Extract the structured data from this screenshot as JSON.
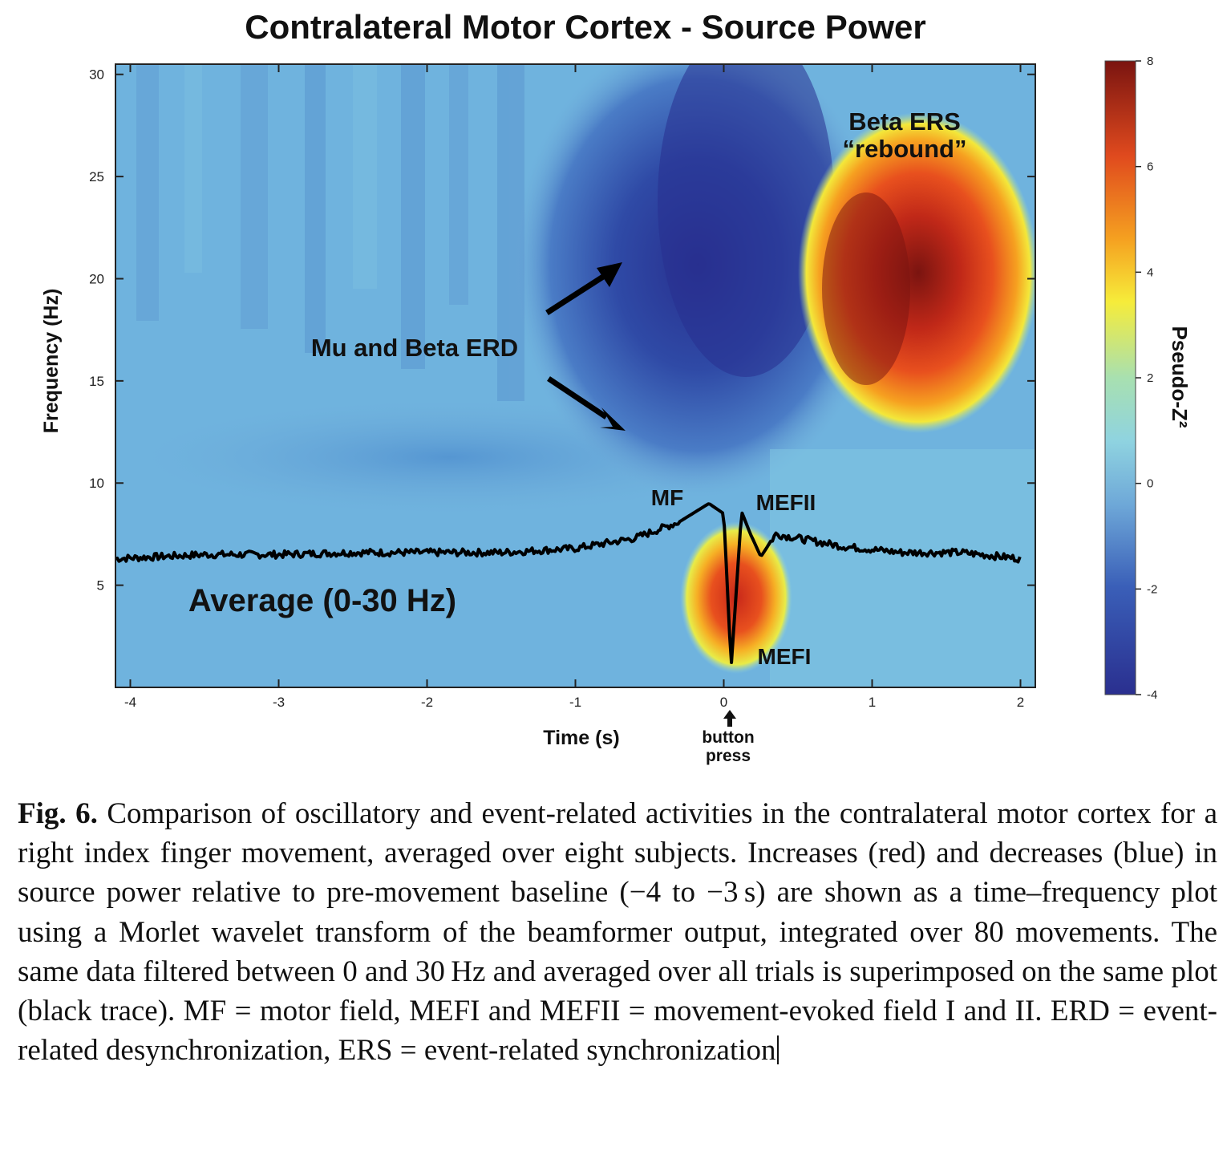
{
  "figure": {
    "title": "Contralateral Motor Cortex - Source Power",
    "colorbar_label": "Pseudo-Z²",
    "annotations": {
      "erd": "Mu and Beta ERD",
      "ers_line1": "Beta ERS",
      "ers_line2": "“rebound”",
      "mf": "MF",
      "mefii": "MEFII",
      "mefi": "MEFI",
      "average": "Average (0-30 Hz)",
      "button_line1": "button",
      "button_line2": "press"
    }
  },
  "chart_data": {
    "type": "heatmap",
    "title": "Contralateral Motor Cortex - Source Power",
    "xlabel": "Time (s)",
    "ylabel": "Frequency (Hz)",
    "xlim": [
      -4.1,
      2.1
    ],
    "ylim": [
      0,
      30.5
    ],
    "x_ticks": [
      -4,
      -3,
      -2,
      -1,
      0,
      1,
      2
    ],
    "x_tick_labels": [
      "-4",
      "-3",
      "-2",
      "-1",
      "0",
      "1",
      "2"
    ],
    "y_ticks": [
      5,
      10,
      15,
      20,
      25,
      30
    ],
    "y_tick_labels": [
      "5",
      "10",
      "15",
      "20",
      "25",
      "30"
    ],
    "colorbar": {
      "label": "Pseudo-Z²",
      "range": [
        -4,
        8
      ],
      "ticks": [
        -4,
        -2,
        0,
        2,
        4,
        6,
        8
      ],
      "tick_labels": [
        "-4",
        "-2",
        "0",
        "2",
        "4",
        "6",
        "8"
      ],
      "colors": [
        "#2a2f8f",
        "#3a5fb8",
        "#6ea8d8",
        "#8fd3e0",
        "#a8e0b0",
        "#f6ec3a",
        "#f5a020",
        "#e04a1e",
        "#7a1410"
      ]
    },
    "regions": [
      {
        "label": "Mu and Beta ERD",
        "time": [
          -1.2,
          0.6
        ],
        "freq": [
          9,
          30
        ],
        "value": -3
      },
      {
        "label": "Beta ERS “rebound”",
        "time": [
          0.5,
          1.9
        ],
        "freq": [
          13,
          26
        ],
        "value": 7
      },
      {
        "label": "MEFI",
        "time": [
          -0.15,
          0.25
        ],
        "freq": [
          2,
          7
        ],
        "value": 6
      }
    ],
    "trace": {
      "name": "Average (0-30 Hz)",
      "time": [
        -4.1,
        -3.5,
        -3.0,
        -2.5,
        -2.0,
        -1.5,
        -1.0,
        -0.6,
        -0.3,
        -0.1,
        0.0,
        0.05,
        0.12,
        0.18,
        0.25,
        0.35,
        0.5,
        0.8,
        1.2,
        1.6,
        2.0
      ],
      "freq": [
        6.3,
        6.5,
        6.5,
        6.6,
        6.6,
        6.6,
        6.8,
        7.3,
        8.1,
        9.0,
        8.5,
        1.0,
        8.6,
        7.5,
        6.4,
        7.5,
        7.3,
        6.9,
        6.6,
        6.6,
        6.3
      ]
    }
  },
  "caption": {
    "lead": "Fig. 6.",
    "text": "Comparison of oscillatory and event-related activities in the contralateral motor cortex for a right index finger movement, averaged over eight subjects. In­creases (red) and decreases (blue) in source power relative to pre-movement base­line (−4 to −3 s) are shown as a time–frequency plot using a Morlet wavelet transform of the beamformer output, integrated over 80 movements. The same data filtered between 0 and 30 Hz and averaged over all trials is superim­posed on the same plot (black trace). MF = motor field, MEFI and MEFII = movement-evoked field I and II. ERD = event-related desynchronization, ERS = event-related synchronization"
  }
}
